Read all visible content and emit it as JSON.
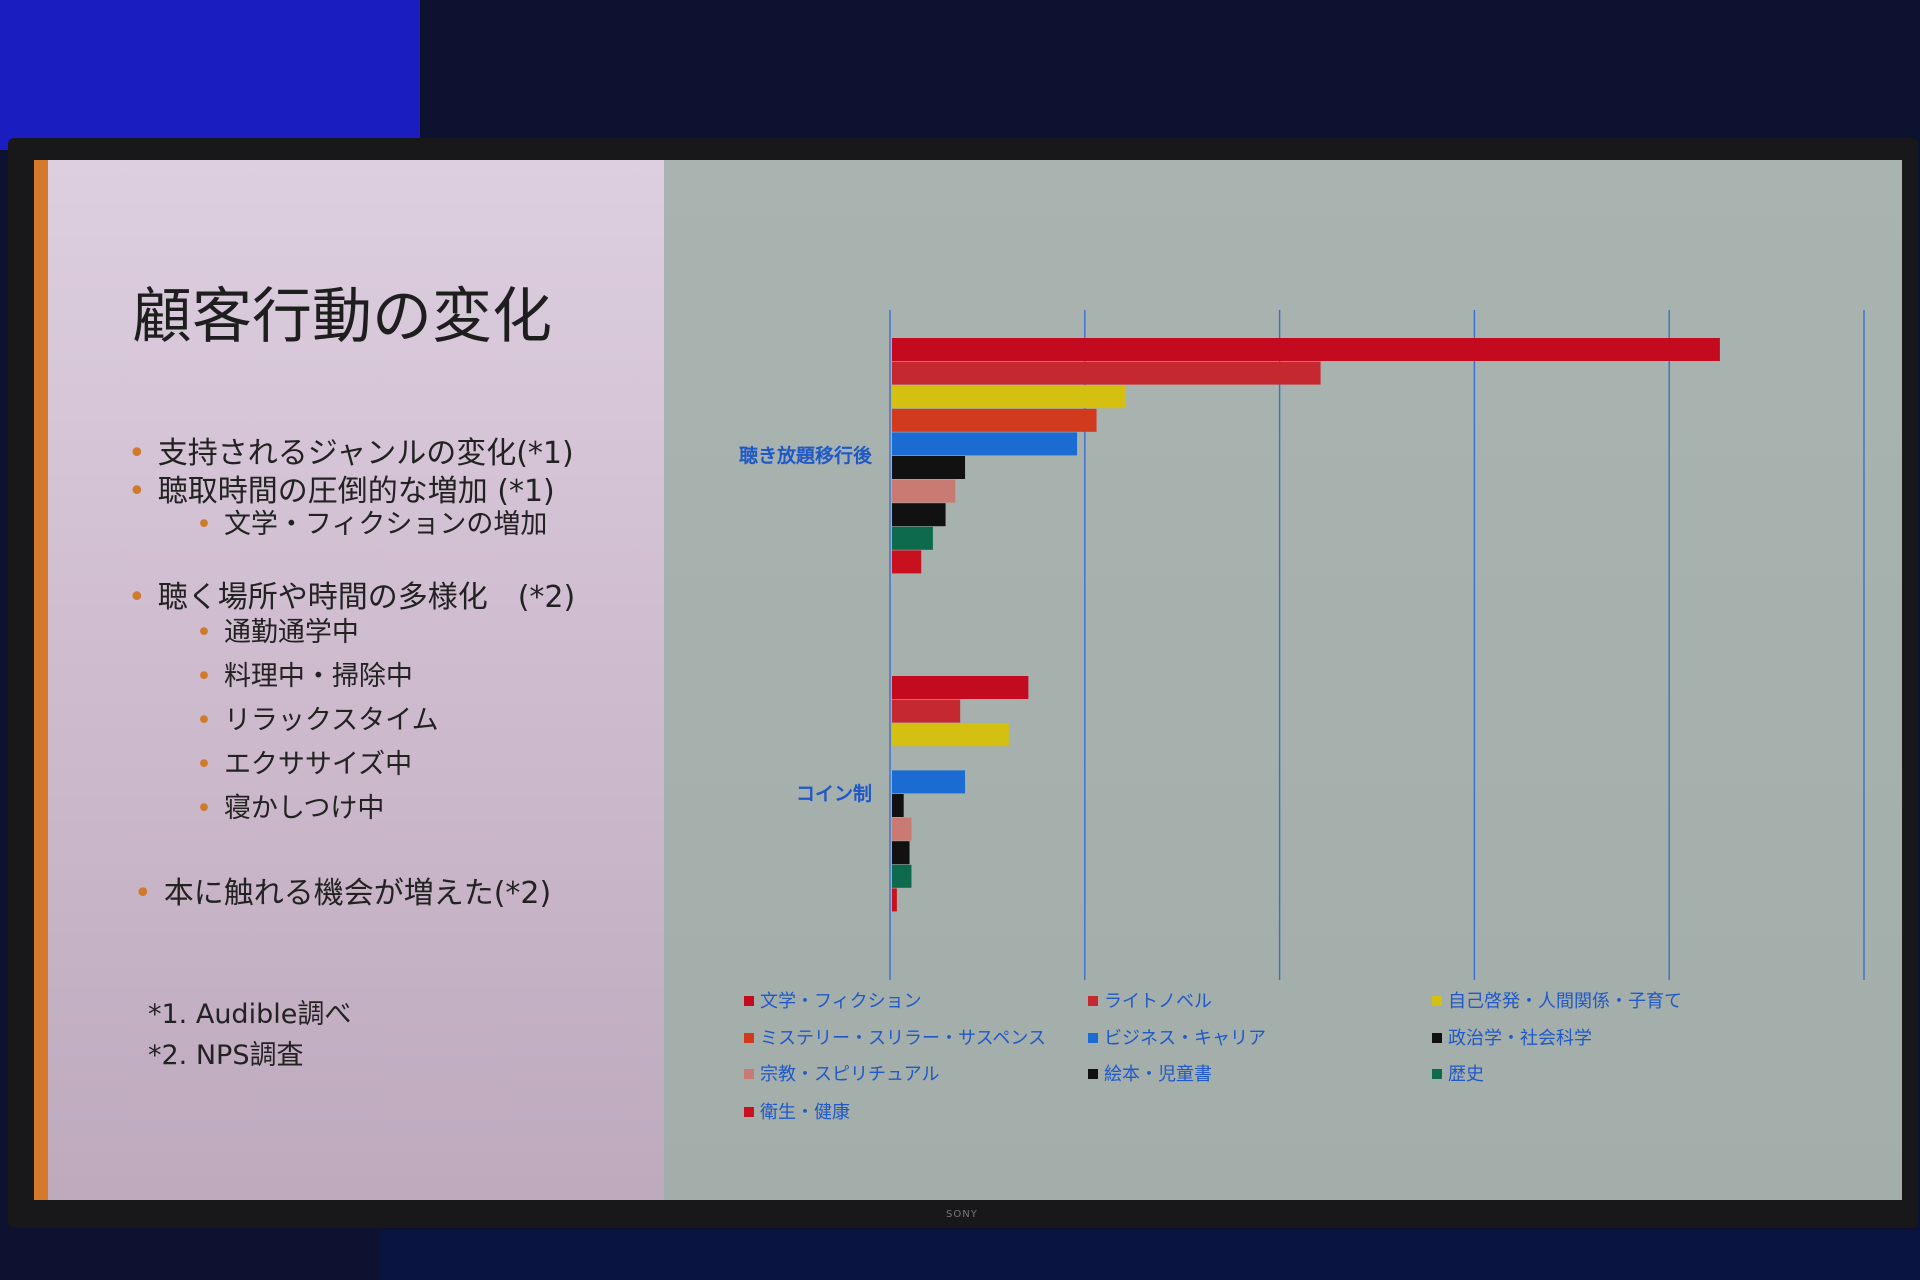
{
  "slide": {
    "title": "顧客行動の変化",
    "bullets": [
      {
        "text": "支持されるジャンルの変化(*1)",
        "level": 1
      },
      {
        "text": "聴取時間の圧倒的な増加 (*1)",
        "level": 1
      },
      {
        "text": "文学・フィクションの増加",
        "level": 2
      },
      {
        "text": "聴く場所や時間の多様化　(*2)",
        "level": 1
      },
      {
        "text": "通勤通学中",
        "level": 2
      },
      {
        "text": "料理中・掃除中",
        "level": 2
      },
      {
        "text": "リラックスタイム",
        "level": 2
      },
      {
        "text": "エクササイズ中",
        "level": 2
      },
      {
        "text": "寝かしつけ中",
        "level": 2
      },
      {
        "text": "本に触れる機会が増えた(*2)",
        "level": 1
      }
    ],
    "footnotes": [
      "*1. Audible調べ",
      "*2. NPS調査"
    ]
  },
  "tv_brand": "SONY",
  "chart_data": {
    "type": "bar",
    "orientation": "horizontal",
    "categories": [
      "聴き放題移行後",
      "コイン制"
    ],
    "series": [
      {
        "name": "文学・フィクション",
        "color": "#c40a1e",
        "values": [
          8.5,
          1.4
        ]
      },
      {
        "name": "ライトノベル",
        "color": "#c62830",
        "values": [
          4.4,
          0.7
        ]
      },
      {
        "name": "自己啓発・人間関係・子育て",
        "color": "#d4c010",
        "values": [
          2.4,
          1.2
        ]
      },
      {
        "name": "ミステリー・スリラー・サスペンス",
        "color": "#d23a1e",
        "values": [
          2.1,
          0.0
        ]
      },
      {
        "name": "ビジネス・キャリア",
        "color": "#1a6cd2",
        "values": [
          1.9,
          0.75
        ]
      },
      {
        "name": "政治学・社会科学",
        "color": "#111111",
        "values": [
          0.75,
          0.12
        ]
      },
      {
        "name": "宗教・スピリチュアル",
        "color": "#c97a72",
        "values": [
          0.65,
          0.2
        ]
      },
      {
        "name": "絵本・児童書",
        "color": "#111111",
        "values": [
          0.55,
          0.18
        ]
      },
      {
        "name": "歴史",
        "color": "#0e6a4c",
        "values": [
          0.42,
          0.2
        ]
      },
      {
        "name": "衛生・健康",
        "color": "#c8101e",
        "values": [
          0.3,
          0.05
        ]
      }
    ],
    "xlim": [
      0,
      10
    ],
    "grid": true,
    "legend": "bottom",
    "axis_labels_shown": false
  }
}
